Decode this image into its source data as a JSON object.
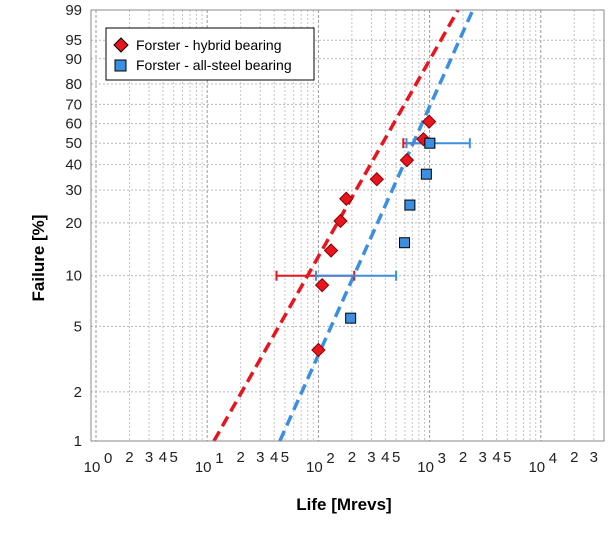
{
  "chart_data": {
    "type": "scatter",
    "xlabel": "Life  [Mrevs]",
    "ylabel": "Failure  [%]",
    "x_scale": "log",
    "y_scale": "weibull",
    "xlim": [
      1,
      30000
    ],
    "ylim": [
      1,
      99
    ],
    "grid": true,
    "legend_position": "top-left",
    "x_ticks": [
      {
        "value": 1,
        "base": "10",
        "exp": "0"
      },
      {
        "value": 10,
        "base": "10",
        "exp": "1"
      },
      {
        "value": 100,
        "base": "10",
        "exp": "2"
      },
      {
        "value": 1000,
        "base": "10",
        "exp": "3"
      },
      {
        "value": 10000,
        "base": "10",
        "exp": "4"
      }
    ],
    "x_minor_labels": [
      {
        "value": 2,
        "label": "2"
      },
      {
        "value": 3,
        "label": "3"
      },
      {
        "value": 4,
        "label": "4"
      },
      {
        "value": 5,
        "label": "5"
      },
      {
        "value": 20,
        "label": "2"
      },
      {
        "value": 30,
        "label": "3"
      },
      {
        "value": 40,
        "label": "4"
      },
      {
        "value": 50,
        "label": "5"
      },
      {
        "value": 200,
        "label": "2"
      },
      {
        "value": 300,
        "label": "3"
      },
      {
        "value": 400,
        "label": "4"
      },
      {
        "value": 500,
        "label": "5"
      },
      {
        "value": 2000,
        "label": "2"
      },
      {
        "value": 3000,
        "label": "3"
      },
      {
        "value": 4000,
        "label": "4"
      },
      {
        "value": 5000,
        "label": "5"
      },
      {
        "value": 20000,
        "label": "2"
      },
      {
        "value": 30000,
        "label": "3"
      }
    ],
    "y_ticks": [
      1,
      2,
      5,
      10,
      20,
      30,
      40,
      50,
      60,
      70,
      80,
      90,
      95,
      99
    ],
    "series": [
      {
        "name": "Forster - hybrid bearing",
        "color": "#e8141e",
        "marker": "diamond",
        "points": [
          {
            "x": 100,
            "y": 3.6
          },
          {
            "x": 108,
            "y": 8.8
          },
          {
            "x": 130,
            "y": 14
          },
          {
            "x": 158,
            "y": 20.5
          },
          {
            "x": 178,
            "y": 27
          },
          {
            "x": 335,
            "y": 34
          },
          {
            "x": 625,
            "y": 42
          },
          {
            "x": 880,
            "y": 52
          },
          {
            "x": 990,
            "y": 61
          }
        ],
        "fit_line": [
          {
            "x": 11.5,
            "y": 1
          },
          {
            "x": 1800,
            "y": 99
          }
        ],
        "error_bars": [
          {
            "y": 10,
            "x_low": 42,
            "x_high": 210
          },
          {
            "y": 50,
            "x_low": 580,
            "x_high": 1100
          }
        ]
      },
      {
        "name": "Forster - all-steel bearing",
        "color": "#3a8fe0",
        "marker": "square",
        "points": [
          {
            "x": 195,
            "y": 5.6
          },
          {
            "x": 595,
            "y": 15.5
          },
          {
            "x": 665,
            "y": 25
          },
          {
            "x": 935,
            "y": 36
          },
          {
            "x": 1005,
            "y": 50
          }
        ],
        "fit_line": [
          {
            "x": 45,
            "y": 1
          },
          {
            "x": 2450,
            "y": 99
          }
        ],
        "error_bars": [
          {
            "y": 10,
            "x_low": 95,
            "x_high": 500
          },
          {
            "y": 50,
            "x_low": 620,
            "x_high": 2300
          }
        ]
      }
    ]
  }
}
